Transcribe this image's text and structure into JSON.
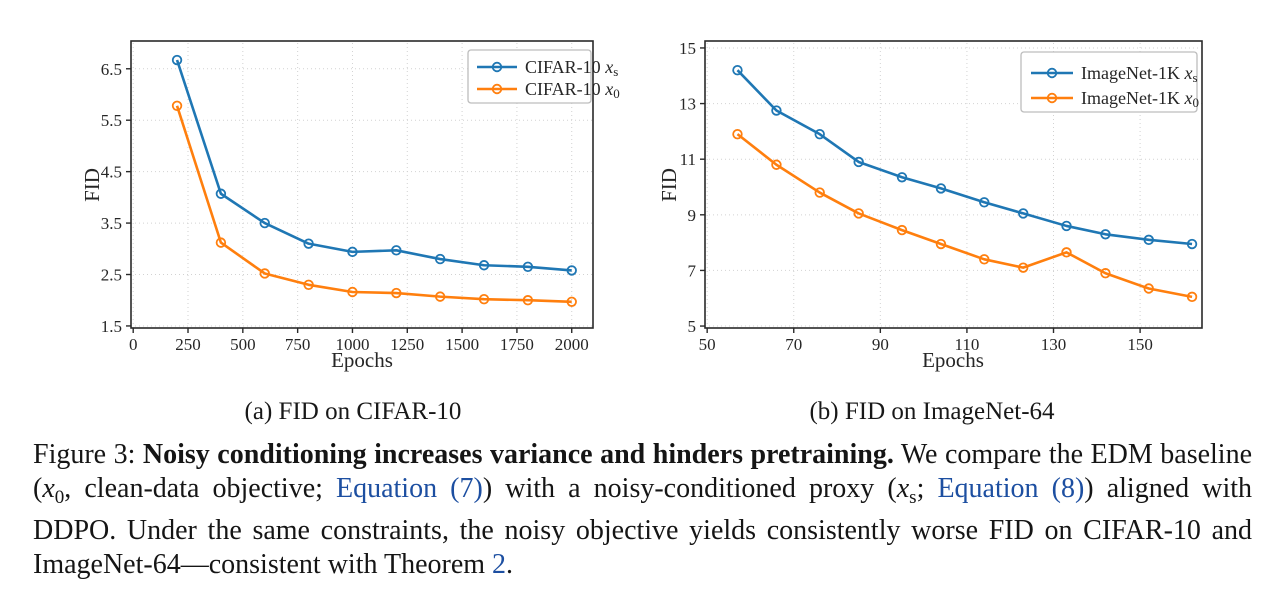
{
  "figure": {
    "subcaptions": {
      "a": "(a) FID on CIFAR-10",
      "b": "(b) FID on ImageNet-64"
    },
    "caption_segments": [
      {
        "t": "Figure 3: ",
        "s": "normal"
      },
      {
        "t": "Noisy conditioning increases variance and hinders pretraining.",
        "s": "bold"
      },
      {
        "t": " We compare the EDM baseline (",
        "s": "normal"
      },
      {
        "t": "x",
        "s": "mathvar"
      },
      {
        "t": "0",
        "s": "mathsub"
      },
      {
        "t": ", clean-data objective; ",
        "s": "normal"
      },
      {
        "t": "Equation (7)",
        "s": "link",
        "name": "equation-7-link"
      },
      {
        "t": ") with a noisy-conditioned proxy (",
        "s": "normal"
      },
      {
        "t": "x",
        "s": "mathvar"
      },
      {
        "t": "s",
        "s": "mathsub"
      },
      {
        "t": "; ",
        "s": "normal"
      },
      {
        "t": "Equation (8)",
        "s": "link",
        "name": "equation-8-link"
      },
      {
        "t": ") aligned with DDPO. Under the same constraints, the noisy objective yields consistently worse FID on CIFAR-10 and ImageNet-64—consistent with Theorem ",
        "s": "normal"
      },
      {
        "t": "2",
        "s": "link",
        "name": "theorem-2-link"
      },
      {
        "t": ".",
        "s": "normal"
      }
    ]
  },
  "colors": {
    "series_blue": "#1f77b4",
    "series_orange": "#ff7f0e",
    "link_blue": "#1d4fa1",
    "grid": "#d2d2d2",
    "spine": "#2a2a2a",
    "legend_border": "#bdbdbd"
  },
  "chart_data": [
    {
      "type": "line",
      "title": "",
      "xlabel": "Epochs",
      "ylabel": "FID",
      "grid": true,
      "legend_position": "upper right",
      "x_ticks": [
        "0",
        "250",
        "500",
        "750",
        "1000",
        "1250",
        "1500",
        "1750",
        "2000"
      ],
      "y_ticks": [
        "1.5",
        "2.5",
        "3.5",
        "4.5",
        "5.5",
        "6.5"
      ],
      "xlim": [
        -10,
        2097
      ],
      "ylim": [
        1.46,
        7.04
      ],
      "x": [
        200,
        400,
        600,
        800,
        1000,
        1200,
        1400,
        1600,
        1800,
        2000
      ],
      "series": [
        {
          "name": "CIFAR-10 x_s",
          "prefix": "CIFAR-10 ",
          "var": "x",
          "sub": "s",
          "color_key": "series_blue",
          "values": [
            6.67,
            4.07,
            3.5,
            3.1,
            2.94,
            2.97,
            2.8,
            2.68,
            2.65,
            2.58
          ]
        },
        {
          "name": "CIFAR-10 x_0",
          "prefix": "CIFAR-10 ",
          "var": "x",
          "sub": "0",
          "color_key": "series_orange",
          "values": [
            5.78,
            3.12,
            2.52,
            2.3,
            2.16,
            2.14,
            2.07,
            2.02,
            2.0,
            1.97
          ]
        }
      ]
    },
    {
      "type": "line",
      "title": "",
      "xlabel": "Epochs",
      "ylabel": "FID",
      "grid": true,
      "legend_position": "upper right",
      "x_ticks": [
        "50",
        "70",
        "90",
        "110",
        "130",
        "150"
      ],
      "y_ticks": [
        "5",
        "7",
        "9",
        "11",
        "13",
        "15"
      ],
      "xlim": [
        49.5,
        164.3
      ],
      "ylim": [
        4.93,
        15.25
      ],
      "x": [
        57,
        66,
        76,
        85,
        95,
        104,
        114,
        123,
        133,
        142,
        152,
        162
      ],
      "series": [
        {
          "name": "ImageNet-1K x_s",
          "prefix": "ImageNet-1K ",
          "var": "x",
          "sub": "s",
          "color_key": "series_blue",
          "values": [
            14.2,
            12.75,
            11.9,
            10.9,
            10.35,
            9.95,
            9.45,
            9.05,
            8.6,
            8.3,
            8.1,
            7.95
          ]
        },
        {
          "name": "ImageNet-1K x_0",
          "prefix": "ImageNet-1K ",
          "var": "x",
          "sub": "0",
          "color_key": "series_orange",
          "values": [
            11.9,
            10.8,
            9.8,
            9.05,
            8.45,
            7.95,
            7.4,
            7.1,
            7.65,
            6.9,
            6.35,
            6.05
          ]
        }
      ]
    }
  ]
}
